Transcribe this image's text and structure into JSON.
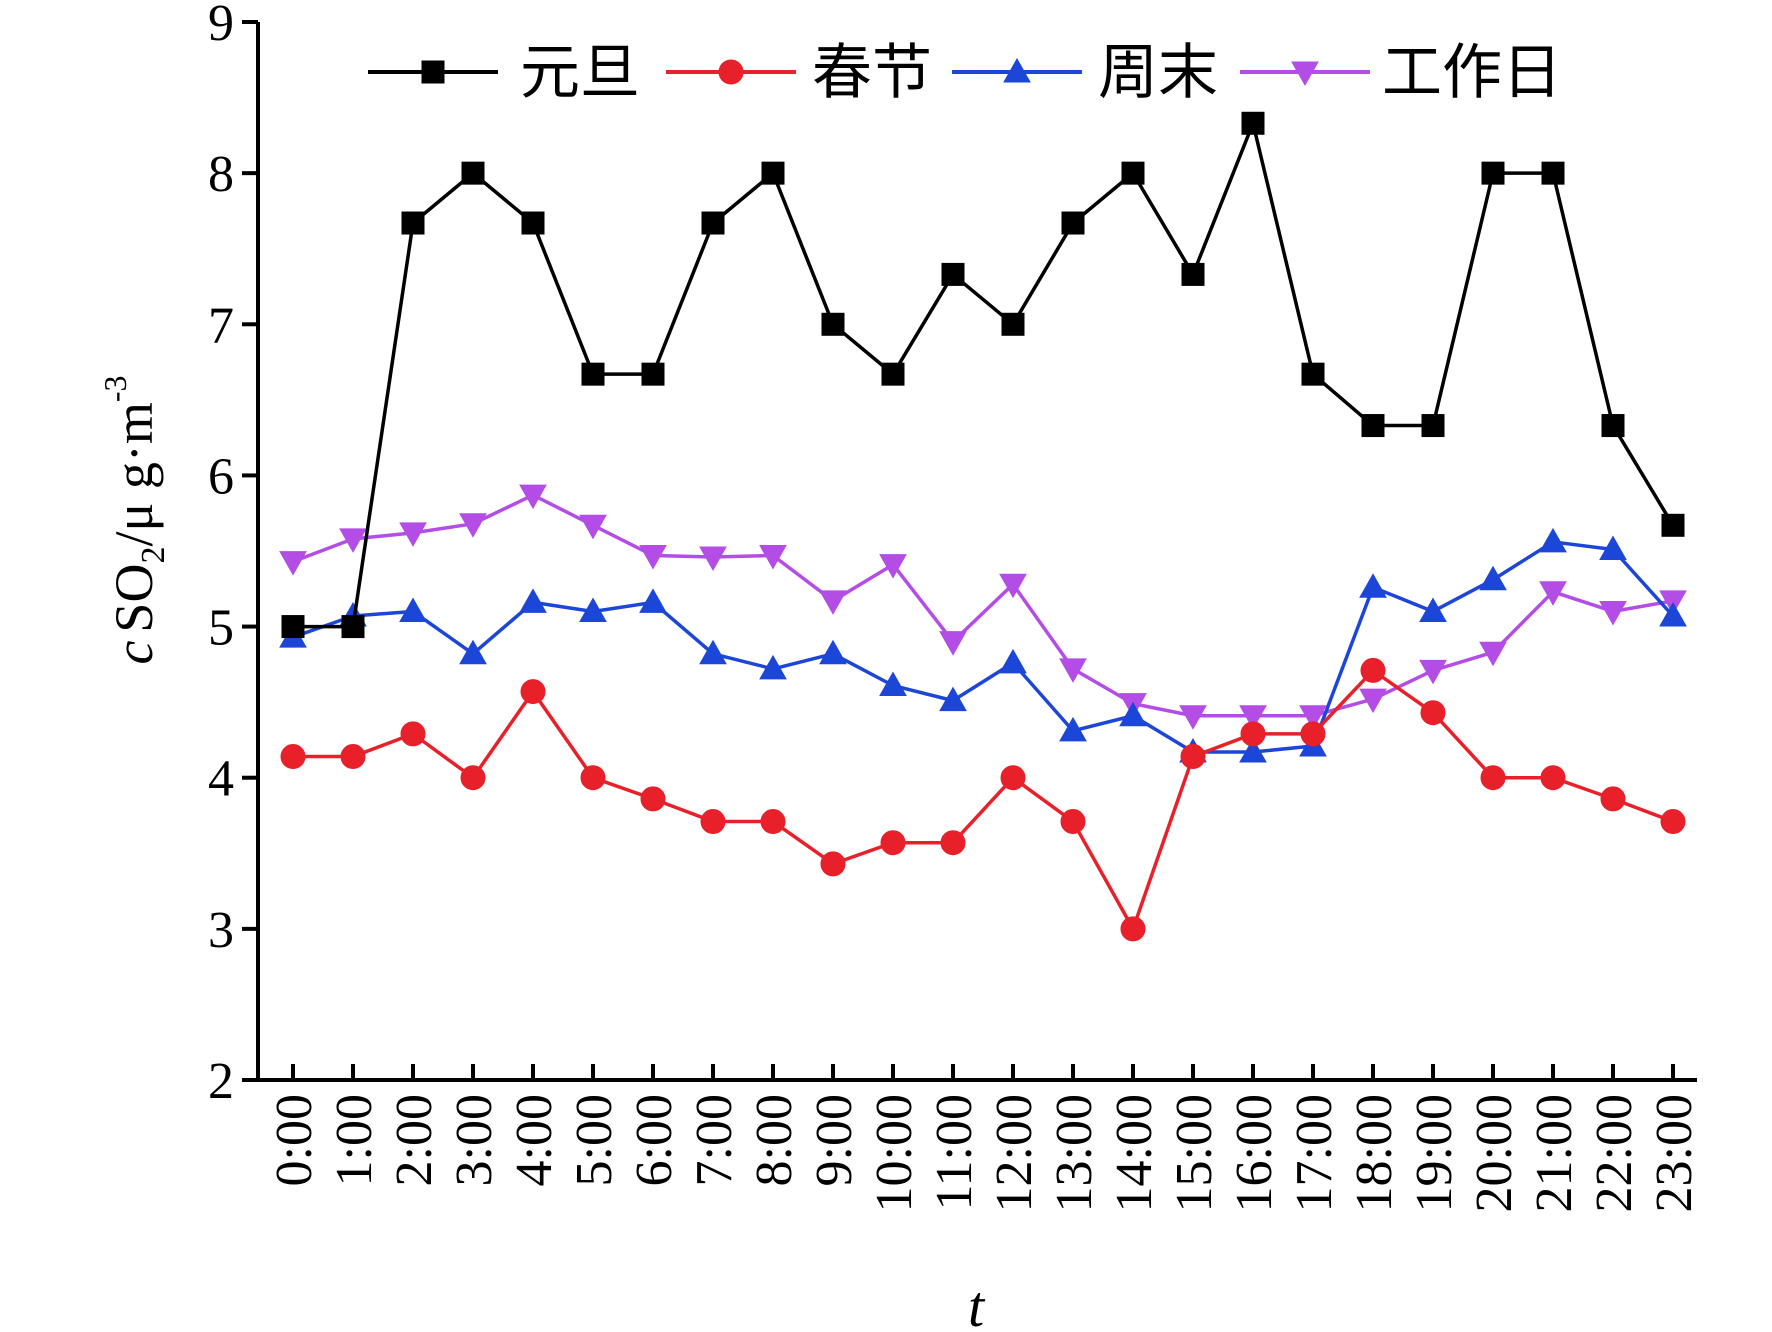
{
  "chart_data": {
    "type": "line",
    "xlabel": "t",
    "ylabel": {
      "prefix": "c",
      "species": "SO",
      "species_sub": "2",
      "unit": "/μ g·m",
      "unit_sup": "-3"
    },
    "ylim": [
      2,
      9
    ],
    "yticks": [
      2,
      3,
      4,
      5,
      6,
      7,
      8,
      9
    ],
    "grid": false,
    "legend_position": "top",
    "categories": [
      "0:00",
      "1:00",
      "2:00",
      "3:00",
      "4:00",
      "5:00",
      "6:00",
      "7:00",
      "8:00",
      "9:00",
      "10:00",
      "11:00",
      "12:00",
      "13:00",
      "14:00",
      "15:00",
      "16:00",
      "17:00",
      "18:00",
      "19:00",
      "20:00",
      "21:00",
      "22:00",
      "23:00"
    ],
    "series": [
      {
        "name": "元旦",
        "color": "#000000",
        "marker": "square",
        "values": [
          5.0,
          5.0,
          7.67,
          8.0,
          7.67,
          6.67,
          6.67,
          7.67,
          8.0,
          7.0,
          6.67,
          7.33,
          7.0,
          7.67,
          8.0,
          7.33,
          8.33,
          6.67,
          6.33,
          6.33,
          8.0,
          8.0,
          6.33,
          5.67
        ]
      },
      {
        "name": "春节",
        "color": "#e8202a",
        "marker": "circle",
        "values": [
          4.14,
          4.14,
          4.29,
          4.0,
          4.57,
          4.0,
          3.86,
          3.71,
          3.71,
          3.43,
          3.57,
          3.57,
          4.0,
          3.71,
          3.0,
          4.14,
          4.29,
          4.29,
          4.71,
          4.43,
          4.0,
          4.0,
          3.86,
          3.71
        ]
      },
      {
        "name": "周末",
        "color": "#1c46d8",
        "marker": "triangle-up",
        "values": [
          4.93,
          5.07,
          5.1,
          4.82,
          5.16,
          5.1,
          5.16,
          4.82,
          4.72,
          4.82,
          4.61,
          4.51,
          4.76,
          4.31,
          4.41,
          4.17,
          4.17,
          4.21,
          5.26,
          5.1,
          5.31,
          5.56,
          5.51,
          5.07
        ]
      },
      {
        "name": "工作日",
        "color": "#b34de6",
        "marker": "triangle-down",
        "values": [
          5.43,
          5.58,
          5.62,
          5.68,
          5.87,
          5.67,
          5.47,
          5.46,
          5.47,
          5.17,
          5.41,
          4.9,
          5.28,
          4.72,
          4.49,
          4.41,
          4.41,
          4.41,
          4.52,
          4.71,
          4.83,
          5.23,
          5.1,
          5.17
        ]
      }
    ]
  }
}
